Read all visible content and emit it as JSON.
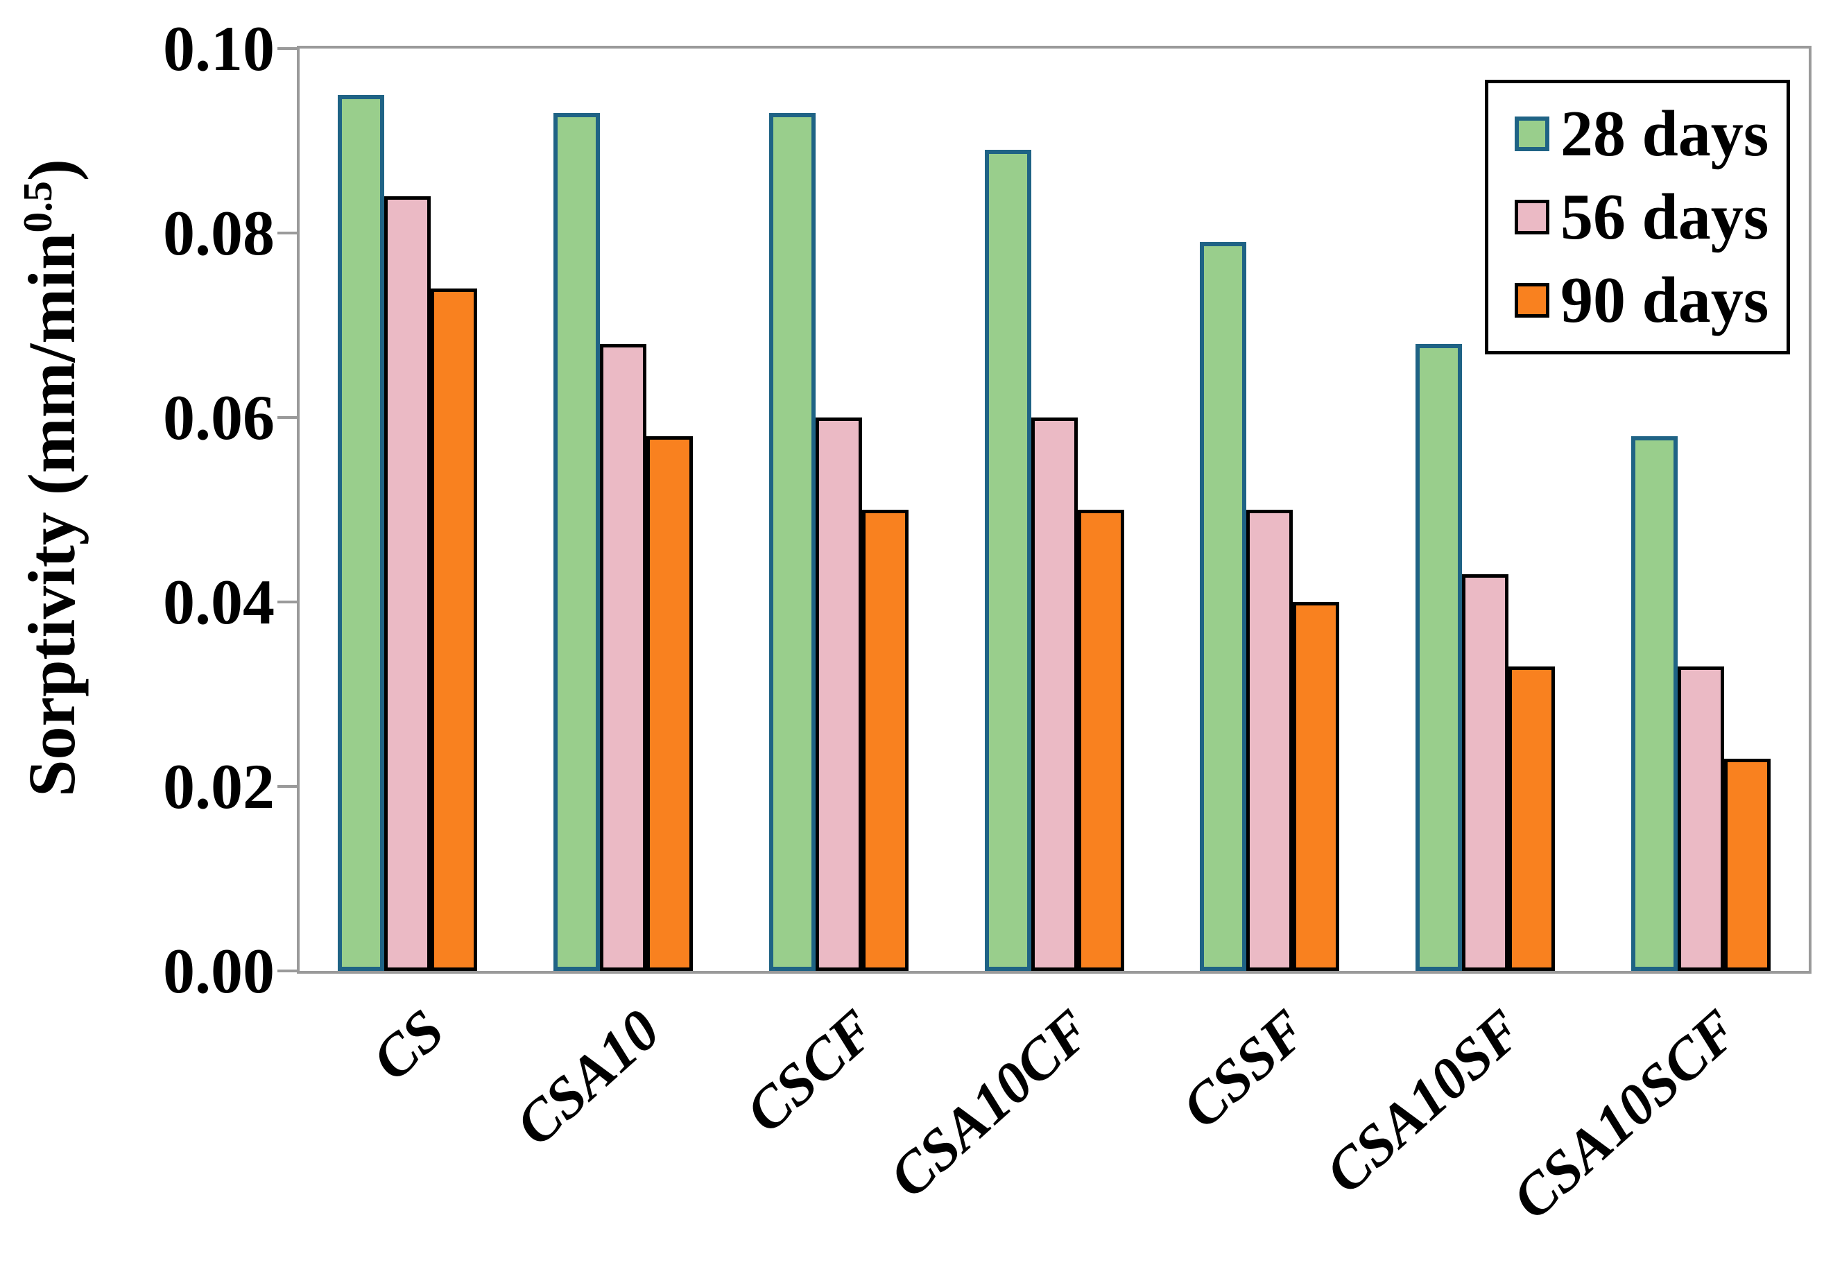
{
  "chart_data": {
    "type": "bar",
    "title": "",
    "ylabel_main": "Sorptivity (mm/min",
    "ylabel_sup": "0.5",
    "ylabel_close": ")",
    "xlabel": "",
    "categories": [
      "CS",
      "CSA10",
      "CSCF",
      "CSA10CF",
      "CSSF",
      "CSA10SF",
      "CSA10SCF"
    ],
    "series": [
      {
        "name": "28 days",
        "fill": "#99CE8C",
        "border": "#1F6385",
        "values": [
          0.095,
          0.093,
          0.093,
          0.089,
          0.079,
          0.068,
          0.058
        ]
      },
      {
        "name": "56 days",
        "fill": "#EBBAC5",
        "border": "#000000",
        "values": [
          0.084,
          0.068,
          0.06,
          0.06,
          0.05,
          0.043,
          0.033
        ]
      },
      {
        "name": "90 days",
        "fill": "#F9811F",
        "border": "#000000",
        "values": [
          0.074,
          0.058,
          0.05,
          0.05,
          0.04,
          0.033,
          0.023
        ]
      }
    ],
    "ylim": [
      0.0,
      0.1
    ],
    "ytick_labels": [
      "0.00",
      "0.02",
      "0.04",
      "0.06",
      "0.08",
      "0.10"
    ],
    "grid": false,
    "legend_position": "top-right",
    "axis_color": "#9A9A9A"
  }
}
